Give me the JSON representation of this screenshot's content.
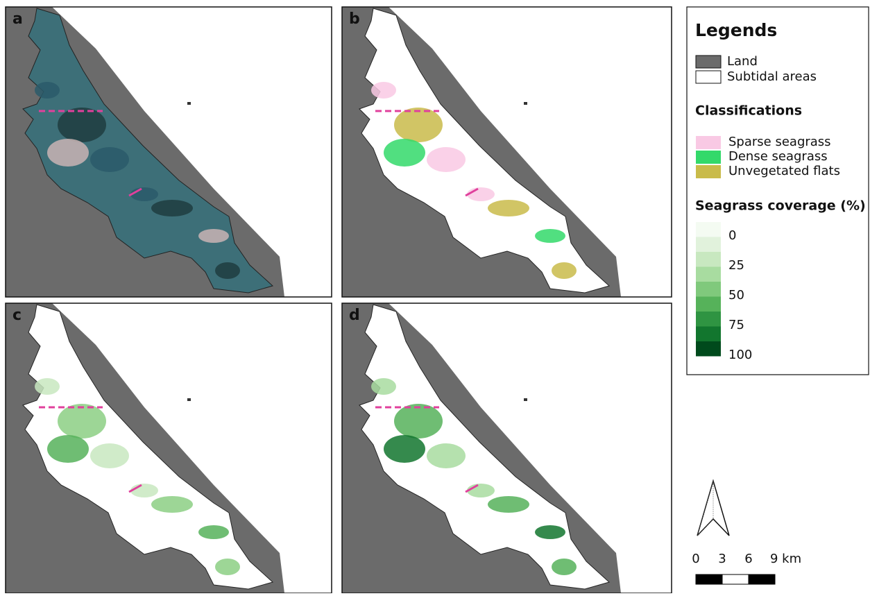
{
  "panels": [
    {
      "label": "a"
    },
    {
      "label": "b"
    },
    {
      "label": "c"
    },
    {
      "label": "d"
    }
  ],
  "legend": {
    "title": "Legends",
    "base": [
      {
        "name": "Land",
        "color": "#6b6b6b"
      },
      {
        "name": "Subtidal areas",
        "color": "#ffffff"
      }
    ],
    "classifications": {
      "title": "Classifications",
      "items": [
        {
          "name": "Sparse seagrass",
          "color": "#f9c9e4"
        },
        {
          "name": "Dense seagrass",
          "color": "#33d96a"
        },
        {
          "name": "Unvegetated flats",
          "color": "#c9bb4a"
        }
      ]
    },
    "coverage": {
      "title": "Seagrass coverage (%)",
      "labels": [
        0,
        25,
        50,
        75,
        100
      ],
      "colors": [
        "#f4fbf2",
        "#e1f2dc",
        "#c8e8c0",
        "#a8dca0",
        "#80c97c",
        "#56b25a",
        "#2f9442",
        "#12762e",
        "#004a1c"
      ]
    }
  },
  "scale_bar": {
    "ticks": [
      "0",
      "3",
      "6",
      "9 km"
    ]
  }
}
